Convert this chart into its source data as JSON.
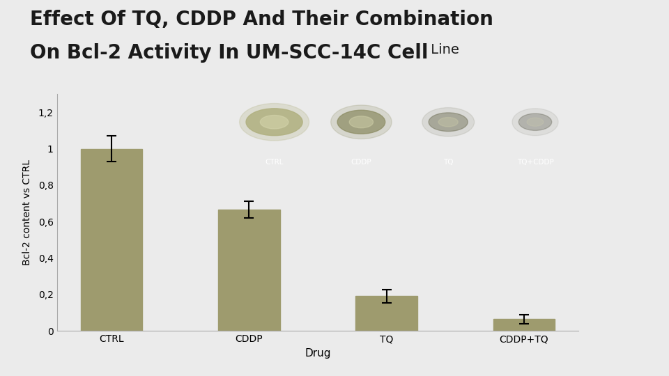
{
  "title_line1": "Effect Of TQ, CDDP And Their Combination",
  "title_line2": "On Bcl-2 Activity In UM-SCC-14C Cell",
  "title_suffix": " Line",
  "title_fontsize": 20,
  "title_suffix_fontsize": 14,
  "categories": [
    "CTRL",
    "CDDP",
    "TQ",
    "CDDP+TQ"
  ],
  "values": [
    1.0,
    0.665,
    0.19,
    0.065
  ],
  "errors": [
    0.07,
    0.045,
    0.035,
    0.025
  ],
  "bar_color": "#9e9b6e",
  "bar_edgecolor": "#9e9b6e",
  "xlabel": "Drug",
  "ylabel": "Bcl-2 content vs CTRL",
  "yticks": [
    0,
    0.2,
    0.4,
    0.6,
    0.8,
    1.0,
    1.2
  ],
  "ytick_labels": [
    "0",
    "0,2",
    "0,4",
    "0,6",
    "0,8",
    "1",
    "1,2"
  ],
  "ylim": [
    0,
    1.3
  ],
  "background_color": "#ebebeb",
  "plot_bg_color": "#ebebeb",
  "sidebar_dark": "#5c5440",
  "sidebar_tan": "#a09870",
  "sidebar_darkbrown": "#4a4535",
  "inset_labels": [
    "CTRL",
    "CDDP",
    "TQ",
    "TQ+CDDP"
  ],
  "inset_bg": "#2a2a2a",
  "inset_text_color": "#ffffff",
  "band_colors": [
    "#b0b080",
    "#8a8a60",
    "#6a6a50",
    "#505040"
  ],
  "band_alphas": [
    0.85,
    0.7,
    0.45,
    0.3
  ]
}
